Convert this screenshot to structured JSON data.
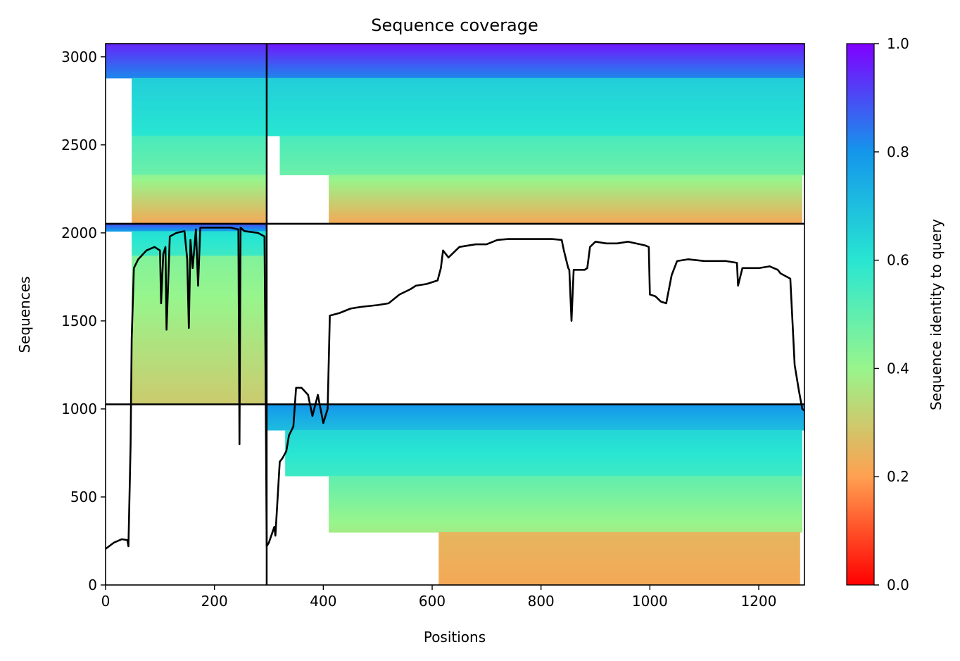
{
  "chart_data": {
    "type": "heatmap",
    "title": "Sequence coverage",
    "xlabel": "Positions",
    "ylabel": "Sequences",
    "xlim": [
      0,
      1284
    ],
    "ylim": [
      0,
      3075
    ],
    "xticks": [
      "0",
      "200",
      "400",
      "600",
      "800",
      "1000",
      "1200"
    ],
    "yticks": [
      "0",
      "500",
      "1000",
      "1500",
      "2000",
      "2500",
      "3000"
    ],
    "colorbar": {
      "label": "Sequence identity to query",
      "range": [
        0.0,
        1.0
      ],
      "ticks": [
        "0.0",
        "0.2",
        "0.4",
        "0.6",
        "0.8",
        "1.0"
      ],
      "colormap": "rainbow_r"
    },
    "chain_boundaries": {
      "x": [
        296
      ],
      "y": [
        1026,
        2052
      ]
    },
    "blocks": [
      {
        "x_range": [
          0,
          296
        ],
        "y_range": [
          2052,
          3075
        ],
        "sub": [
          {
            "x": [
              0,
              296
            ],
            "y": [
              2880,
              3075
            ],
            "identity_top": 0.95,
            "identity_bottom": 0.82
          },
          {
            "x": [
              48,
              296
            ],
            "y": [
              2552,
              2880
            ],
            "identity_top": 0.66,
            "identity_bottom": 0.6
          },
          {
            "x": [
              48,
              296
            ],
            "y": [
              2330,
              2552
            ],
            "identity_top": 0.54,
            "identity_bottom": 0.48
          },
          {
            "x": [
              48,
              296
            ],
            "y": [
              2052,
              2330
            ],
            "identity_top": 0.42,
            "identity_bottom": 0.22
          }
        ]
      },
      {
        "x_range": [
          296,
          1284
        ],
        "y_range": [
          2052,
          3075
        ],
        "sub": [
          {
            "x": [
              296,
              1284
            ],
            "y": [
              2880,
              3075
            ],
            "identity_top": 0.97,
            "identity_bottom": 0.82
          },
          {
            "x": [
              296,
              1284
            ],
            "y": [
              2552,
              2880
            ],
            "identity_top": 0.66,
            "identity_bottom": 0.6
          },
          {
            "x": [
              320,
              1284
            ],
            "y": [
              2330,
              2552
            ],
            "identity_top": 0.54,
            "identity_bottom": 0.48
          },
          {
            "x": [
              410,
              1280
            ],
            "y": [
              2052,
              2330
            ],
            "identity_top": 0.42,
            "identity_bottom": 0.22
          }
        ]
      },
      {
        "x_range": [
          0,
          296
        ],
        "y_range": [
          1026,
          2052
        ],
        "sub": [
          {
            "x": [
              0,
              296
            ],
            "y": [
              2010,
              2052
            ],
            "identity_top": 0.9,
            "identity_bottom": 0.78
          },
          {
            "x": [
              48,
              296
            ],
            "y": [
              1870,
              2010
            ],
            "identity_top": 0.62,
            "identity_bottom": 0.56
          },
          {
            "x": [
              48,
              296
            ],
            "y": [
              1026,
              1870
            ],
            "identity_top": 0.44,
            "identity_bottom": 0.3
          }
        ]
      },
      {
        "x_range": [
          296,
          1284
        ],
        "y_range": [
          0,
          1026
        ],
        "sub": [
          {
            "x": [
              296,
              1284
            ],
            "y": [
              880,
              1026
            ],
            "identity_top": 0.8,
            "identity_bottom": 0.7
          },
          {
            "x": [
              330,
              1280
            ],
            "y": [
              620,
              880
            ],
            "identity_top": 0.64,
            "identity_bottom": 0.56
          },
          {
            "x": [
              410,
              1280
            ],
            "y": [
              300,
              620
            ],
            "identity_top": 0.5,
            "identity_bottom": 0.38
          },
          {
            "x": [
              612,
              1276
            ],
            "y": [
              0,
              300
            ],
            "identity_top": 0.25,
            "identity_bottom": 0.22
          }
        ]
      }
    ],
    "series": [
      {
        "type": "line",
        "color": "#000000",
        "x": [
          0,
          15,
          30,
          40,
          42,
          46,
          48,
          52,
          60,
          75,
          90,
          100,
          102,
          106,
          110,
          112,
          118,
          130,
          145,
          150,
          153,
          156,
          160,
          166,
          170,
          174,
          180,
          200,
          230,
          244,
          246,
          248,
          255,
          280,
          292,
          294,
          296,
          300,
          310,
          312,
          320,
          325,
          332,
          337,
          345,
          350,
          360,
          372,
          380,
          390,
          400,
          408,
          412,
          430,
          450,
          470,
          500,
          520,
          540,
          560,
          570,
          590,
          610,
          616,
          620,
          630,
          650,
          680,
          700,
          720,
          740,
          780,
          820,
          838,
          842,
          850,
          852,
          856,
          860,
          880,
          885,
          890,
          900,
          920,
          940,
          960,
          990,
          998,
          1000,
          1010,
          1020,
          1030,
          1040,
          1050,
          1070,
          1100,
          1140,
          1160,
          1162,
          1170,
          1200,
          1220,
          1235,
          1240,
          1246,
          1258,
          1266,
          1274,
          1280,
          1284
        ],
        "y": [
          205,
          240,
          260,
          255,
          220,
          800,
          1400,
          1800,
          1850,
          1900,
          1920,
          1900,
          1600,
          1880,
          1920,
          1450,
          1980,
          2000,
          2010,
          1850,
          1460,
          1960,
          1800,
          2020,
          1700,
          2030,
          2030,
          2030,
          2030,
          2020,
          800,
          2030,
          2010,
          2000,
          1980,
          1200,
          220,
          240,
          330,
          280,
          700,
          720,
          760,
          850,
          900,
          1120,
          1120,
          1080,
          960,
          1080,
          920,
          1000,
          1530,
          1545,
          1570,
          1580,
          1590,
          1600,
          1650,
          1680,
          1700,
          1710,
          1730,
          1800,
          1900,
          1860,
          1920,
          1935,
          1935,
          1960,
          1965,
          1965,
          1965,
          1960,
          1900,
          1800,
          1790,
          1500,
          1790,
          1790,
          1800,
          1920,
          1950,
          1940,
          1940,
          1950,
          1930,
          1920,
          1650,
          1640,
          1610,
          1600,
          1760,
          1840,
          1850,
          1840,
          1840,
          1830,
          1700,
          1800,
          1800,
          1810,
          1790,
          1770,
          1760,
          1740,
          1250,
          1100,
          1000,
          990
        ]
      }
    ]
  }
}
